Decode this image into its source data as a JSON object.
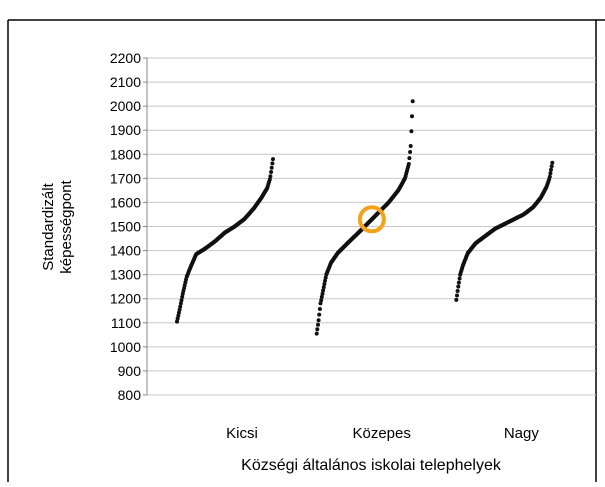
{
  "chart_data": {
    "type": "scatter",
    "title": "",
    "ylabel": [
      "Standardizált",
      "képességpont"
    ],
    "xlabel": "Községi általános iskolai telephelyek",
    "ylim": [
      800,
      2200
    ],
    "ytick_step": 100,
    "yticks": [
      "800",
      "900",
      "1000",
      "1100",
      "1200",
      "1300",
      "1400",
      "1500",
      "1600",
      "1700",
      "1800",
      "1900",
      "2000",
      "2100",
      "2200"
    ],
    "categories": [
      "Kicsi",
      "Közepes",
      "Nagy"
    ],
    "grid": true,
    "legend": "none",
    "series": [
      {
        "category": "Kicsi",
        "profile": [
          [
            0,
            1105
          ],
          [
            0.03,
            1160
          ],
          [
            0.06,
            1220
          ],
          [
            0.1,
            1290
          ],
          [
            0.15,
            1340
          ],
          [
            0.2,
            1385
          ],
          [
            0.3,
            1410
          ],
          [
            0.4,
            1440
          ],
          [
            0.5,
            1475
          ],
          [
            0.6,
            1500
          ],
          [
            0.7,
            1530
          ],
          [
            0.8,
            1575
          ],
          [
            0.88,
            1620
          ],
          [
            0.94,
            1660
          ],
          [
            0.97,
            1700
          ],
          [
            1,
            1780
          ]
        ]
      },
      {
        "category": "Közepes",
        "profile": [
          [
            0,
            1055
          ],
          [
            0.02,
            1110
          ],
          [
            0.04,
            1180
          ],
          [
            0.07,
            1240
          ],
          [
            0.1,
            1300
          ],
          [
            0.15,
            1350
          ],
          [
            0.22,
            1390
          ],
          [
            0.32,
            1430
          ],
          [
            0.45,
            1480
          ],
          [
            0.55,
            1520
          ],
          [
            0.65,
            1560
          ],
          [
            0.75,
            1600
          ],
          [
            0.85,
            1650
          ],
          [
            0.92,
            1700
          ],
          [
            0.96,
            1760
          ],
          [
            0.98,
            1835
          ],
          [
            1,
            2020
          ]
        ]
      },
      {
        "category": "Nagy",
        "profile": [
          [
            0,
            1195
          ],
          [
            0.02,
            1250
          ],
          [
            0.04,
            1300
          ],
          [
            0.07,
            1340
          ],
          [
            0.12,
            1390
          ],
          [
            0.2,
            1430
          ],
          [
            0.3,
            1460
          ],
          [
            0.4,
            1490
          ],
          [
            0.5,
            1510
          ],
          [
            0.6,
            1530
          ],
          [
            0.7,
            1550
          ],
          [
            0.8,
            1580
          ],
          [
            0.88,
            1620
          ],
          [
            0.94,
            1665
          ],
          [
            0.97,
            1700
          ],
          [
            1,
            1765
          ]
        ]
      }
    ],
    "highlight": {
      "category": "Közepes",
      "value": 1530,
      "color": "#f5a21b"
    },
    "point_color": "#111111"
  }
}
